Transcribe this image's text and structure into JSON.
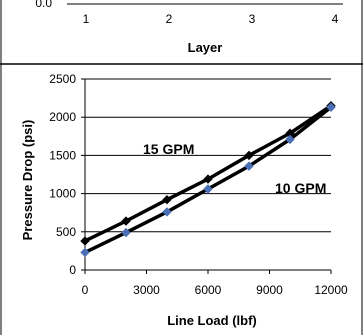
{
  "top_chart_fragment": {
    "y_tick_visible": "0.0",
    "x_ticks": [
      "1",
      "2",
      "3",
      "4"
    ],
    "xlabel": "Layer"
  },
  "chart_data": {
    "type": "line",
    "title": "",
    "xlabel": "Line Load (lbf)",
    "ylabel": "Pressure Drop  (psi)",
    "xlim": [
      0,
      12000
    ],
    "ylim": [
      0,
      2500
    ],
    "x_ticks": [
      0,
      3000,
      6000,
      9000,
      12000
    ],
    "y_ticks": [
      0,
      500,
      1000,
      1500,
      2000,
      2500
    ],
    "grid": "horizontal",
    "series": [
      {
        "name": "15 GPM",
        "color": "#000000",
        "marker": "diamond",
        "x": [
          0,
          2000,
          4000,
          6000,
          8000,
          10000,
          12000
        ],
        "values": [
          380,
          640,
          920,
          1190,
          1500,
          1790,
          2150
        ]
      },
      {
        "name": "10 GPM",
        "color": "#000000",
        "marker_color": "#4a6fb5",
        "marker": "diamond",
        "x": [
          0,
          2000,
          4000,
          6000,
          8000,
          10000,
          12000
        ],
        "values": [
          230,
          490,
          760,
          1060,
          1360,
          1710,
          2130
        ]
      }
    ]
  }
}
